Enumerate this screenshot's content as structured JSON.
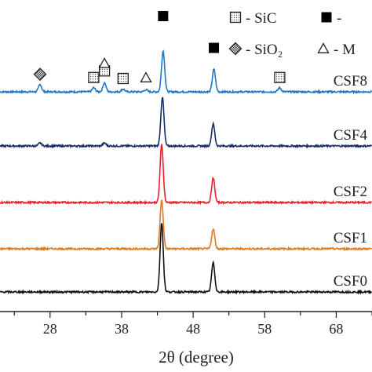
{
  "chart_data": {
    "type": "line",
    "title": "",
    "xlabel": "2θ (degree)",
    "ylabel": "",
    "xlim": [
      21,
      73
    ],
    "x_ticks": [
      28,
      38,
      48,
      58,
      68
    ],
    "grid": false,
    "series": [
      {
        "name": "CSF8",
        "color": "#1f77c8",
        "peaks": [
          {
            "x": 26.6,
            "h": 0.18
          },
          {
            "x": 34.1,
            "h": 0.1
          },
          {
            "x": 35.6,
            "h": 0.22
          },
          {
            "x": 38.2,
            "h": 0.07
          },
          {
            "x": 41.4,
            "h": 0.05
          },
          {
            "x": 43.8,
            "h": 1.0
          },
          {
            "x": 50.9,
            "h": 0.55
          },
          {
            "x": 60.1,
            "h": 0.1
          }
        ]
      },
      {
        "name": "CSF4",
        "color": "#1a2a6c",
        "peaks": [
          {
            "x": 26.6,
            "h": 0.06
          },
          {
            "x": 35.6,
            "h": 0.06
          },
          {
            "x": 43.7,
            "h": 1.0
          },
          {
            "x": 50.8,
            "h": 0.45
          }
        ]
      },
      {
        "name": "CSF2",
        "color": "#e8202a",
        "peaks": [
          {
            "x": 43.6,
            "h": 1.0
          },
          {
            "x": 50.8,
            "h": 0.42
          }
        ]
      },
      {
        "name": "CSF1",
        "color": "#e07a20",
        "peaks": [
          {
            "x": 43.6,
            "h": 1.0
          },
          {
            "x": 50.8,
            "h": 0.4
          }
        ]
      },
      {
        "name": "CSF0",
        "color": "#111111",
        "peaks": [
          {
            "x": 43.6,
            "h": 1.0
          },
          {
            "x": 50.8,
            "h": 0.42
          }
        ]
      }
    ],
    "markers": [
      {
        "type": "sio2",
        "x": 26.6,
        "series": 0,
        "level": 1.0
      },
      {
        "type": "sic",
        "x": 34.1,
        "series": 0,
        "level": 1.0
      },
      {
        "type": "sic",
        "x": 35.6,
        "series": 0,
        "level": 1.25
      },
      {
        "type": "triangle",
        "x": 35.6,
        "series": 0,
        "level": 2.3
      },
      {
        "type": "sic",
        "x": 38.2,
        "series": 0,
        "level": 1.0
      },
      {
        "type": "triangle",
        "x": 41.4,
        "series": 0,
        "level": 1.1
      },
      {
        "type": "square-filled",
        "x": 43.8,
        "series": 0,
        "level": 4.5
      },
      {
        "type": "square-filled",
        "x": 50.9,
        "series": 0,
        "level": 2.6
      },
      {
        "type": "sic",
        "x": 60.1,
        "series": 0,
        "level": 1.0
      }
    ],
    "legend": [
      {
        "type": "sic",
        "label": "- SiC"
      },
      {
        "type": "sio2",
        "label": "- SiO₂"
      },
      {
        "type": "square-filled",
        "label": "-"
      },
      {
        "type": "triangle",
        "label": "- M"
      }
    ]
  }
}
